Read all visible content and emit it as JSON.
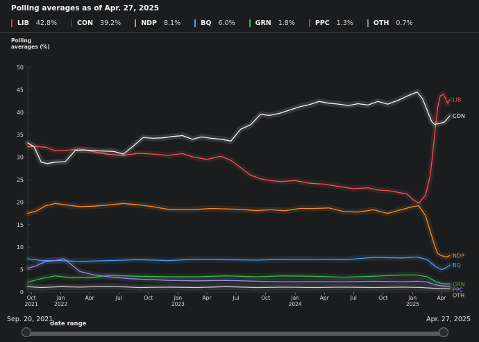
{
  "header": {
    "title": "Polling averages as of Apr. 27, 2025"
  },
  "legend": [
    {
      "name": "LIB",
      "value": "42.8%",
      "color": "#e8343a"
    },
    {
      "name": "CON",
      "value": "39.2%",
      "color": "#1f3f7f"
    },
    {
      "name": "NDP",
      "value": "8.1%",
      "color": "#f58d2e"
    },
    {
      "name": "BQ",
      "value": "6.0%",
      "color": "#4aa3ee"
    },
    {
      "name": "GRN",
      "value": "1.8%",
      "color": "#3dbb4e"
    },
    {
      "name": "PPC",
      "value": "1.3%",
      "color": "#6c4ec2"
    },
    {
      "name": "OTH",
      "value": "0.7%",
      "color": "#8b8c8f"
    }
  ],
  "date_range": {
    "label": "date range",
    "start": "Sep. 20, 2021",
    "end": "Apr. 27, 2025"
  },
  "chart_data": {
    "type": "line",
    "ylabel": "Polling averages (%)",
    "ylim": [
      0,
      50
    ],
    "yticks": [
      0,
      5,
      10,
      15,
      20,
      25,
      30,
      35,
      40,
      45,
      50
    ],
    "xlim": [
      "2021-09-20",
      "2025-04-27"
    ],
    "xticks": [
      {
        "date": "2021-10-01",
        "label": "Oct",
        "year": "2021"
      },
      {
        "date": "2022-01-01",
        "label": "Jan",
        "year": "2022"
      },
      {
        "date": "2022-04-01",
        "label": "Apr",
        "year": ""
      },
      {
        "date": "2022-07-01",
        "label": "Jul",
        "year": ""
      },
      {
        "date": "2022-10-01",
        "label": "Oct",
        "year": ""
      },
      {
        "date": "2023-01-01",
        "label": "Jan",
        "year": "2023"
      },
      {
        "date": "2023-04-01",
        "label": "Apr",
        "year": ""
      },
      {
        "date": "2023-07-01",
        "label": "Jul",
        "year": ""
      },
      {
        "date": "2023-10-01",
        "label": "Oct",
        "year": ""
      },
      {
        "date": "2024-01-01",
        "label": "Jan",
        "year": "2024"
      },
      {
        "date": "2024-04-01",
        "label": "Apr",
        "year": ""
      },
      {
        "date": "2024-07-01",
        "label": "Jul",
        "year": ""
      },
      {
        "date": "2024-10-01",
        "label": "Oct",
        "year": ""
      },
      {
        "date": "2025-01-01",
        "label": "Jan",
        "year": "2025"
      },
      {
        "date": "2025-04-01",
        "label": "Apr",
        "year": ""
      }
    ],
    "series": [
      {
        "name": "LIB",
        "color": "#e8343a",
        "line": "#f0565c",
        "points": [
          [
            "2021-09-20",
            32.3
          ],
          [
            "2021-10-15",
            32.4
          ],
          [
            "2021-11-15",
            32.2
          ],
          [
            "2021-12-15",
            31.4
          ],
          [
            "2022-01-15",
            31.5
          ],
          [
            "2022-03-01",
            31.8
          ],
          [
            "2022-04-15",
            31.2
          ],
          [
            "2022-06-01",
            30.6
          ],
          [
            "2022-07-15",
            30.4
          ],
          [
            "2022-09-01",
            30.9
          ],
          [
            "2022-10-15",
            30.7
          ],
          [
            "2022-12-01",
            30.4
          ],
          [
            "2023-01-15",
            30.8
          ],
          [
            "2023-02-15",
            30.1
          ],
          [
            "2023-04-01",
            29.5
          ],
          [
            "2023-05-15",
            30.2
          ],
          [
            "2023-06-15",
            29.3
          ],
          [
            "2023-07-15",
            27.7
          ],
          [
            "2023-08-15",
            26.0
          ],
          [
            "2023-09-15",
            25.2
          ],
          [
            "2023-10-15",
            24.8
          ],
          [
            "2023-11-15",
            24.6
          ],
          [
            "2024-01-01",
            24.8
          ],
          [
            "2024-02-15",
            24.2
          ],
          [
            "2024-04-01",
            24.0
          ],
          [
            "2024-05-15",
            23.5
          ],
          [
            "2024-07-01",
            23.0
          ],
          [
            "2024-08-15",
            23.2
          ],
          [
            "2024-09-15",
            22.7
          ],
          [
            "2024-10-15",
            22.6
          ],
          [
            "2024-11-15",
            22.2
          ],
          [
            "2024-12-15",
            21.8
          ],
          [
            "2025-01-01",
            20.6
          ],
          [
            "2025-01-20",
            19.8
          ],
          [
            "2025-02-10",
            21.5
          ],
          [
            "2025-02-25",
            26.0
          ],
          [
            "2025-03-05",
            31.0
          ],
          [
            "2025-03-12",
            36.0
          ],
          [
            "2025-03-20",
            41.0
          ],
          [
            "2025-03-28",
            43.6
          ],
          [
            "2025-04-06",
            44.0
          ],
          [
            "2025-04-14",
            43.0
          ],
          [
            "2025-04-20",
            42.0
          ],
          [
            "2025-04-27",
            42.8
          ]
        ]
      },
      {
        "name": "CON",
        "color": "#1f3f7f",
        "line": "#f5f5f5",
        "points": [
          [
            "2021-09-20",
            33.2
          ],
          [
            "2021-10-10",
            32.3
          ],
          [
            "2021-11-01",
            28.9
          ],
          [
            "2021-11-20",
            28.6
          ],
          [
            "2021-12-15",
            28.9
          ],
          [
            "2022-01-15",
            29.0
          ],
          [
            "2022-02-15",
            31.5
          ],
          [
            "2022-03-15",
            31.6
          ],
          [
            "2022-05-01",
            31.4
          ],
          [
            "2022-06-15",
            31.3
          ],
          [
            "2022-07-15",
            30.7
          ],
          [
            "2022-08-15",
            32.5
          ],
          [
            "2022-09-15",
            34.4
          ],
          [
            "2022-10-15",
            34.2
          ],
          [
            "2022-11-15",
            34.3
          ],
          [
            "2022-12-15",
            34.6
          ],
          [
            "2023-01-15",
            34.8
          ],
          [
            "2023-02-15",
            34.0
          ],
          [
            "2023-03-15",
            34.5
          ],
          [
            "2023-04-15",
            34.2
          ],
          [
            "2023-05-15",
            34.0
          ],
          [
            "2023-06-15",
            33.6
          ],
          [
            "2023-07-15",
            36.2
          ],
          [
            "2023-08-15",
            37.2
          ],
          [
            "2023-09-15",
            39.5
          ],
          [
            "2023-10-15",
            39.3
          ],
          [
            "2023-11-15",
            39.8
          ],
          [
            "2023-12-15",
            40.5
          ],
          [
            "2024-01-15",
            41.2
          ],
          [
            "2024-02-15",
            41.7
          ],
          [
            "2024-03-15",
            42.4
          ],
          [
            "2024-04-15",
            42.0
          ],
          [
            "2024-05-15",
            41.8
          ],
          [
            "2024-06-15",
            41.5
          ],
          [
            "2024-07-15",
            41.9
          ],
          [
            "2024-08-15",
            41.6
          ],
          [
            "2024-09-15",
            42.4
          ],
          [
            "2024-10-15",
            41.8
          ],
          [
            "2024-11-15",
            42.6
          ],
          [
            "2024-12-15",
            43.6
          ],
          [
            "2025-01-15",
            44.5
          ],
          [
            "2025-02-01",
            43.0
          ],
          [
            "2025-02-15",
            40.5
          ],
          [
            "2025-03-01",
            38.0
          ],
          [
            "2025-03-10",
            37.3
          ],
          [
            "2025-03-25",
            37.5
          ],
          [
            "2025-04-10",
            37.8
          ],
          [
            "2025-04-27",
            39.2
          ]
        ]
      },
      {
        "name": "NDP",
        "color": "#f58d2e",
        "line": "#f58d2e",
        "points": [
          [
            "2021-09-20",
            17.5
          ],
          [
            "2021-10-15",
            18.0
          ],
          [
            "2021-11-15",
            19.2
          ],
          [
            "2021-12-15",
            19.7
          ],
          [
            "2022-01-15",
            19.4
          ],
          [
            "2022-03-01",
            19.0
          ],
          [
            "2022-04-15",
            19.1
          ],
          [
            "2022-06-01",
            19.4
          ],
          [
            "2022-07-15",
            19.7
          ],
          [
            "2022-09-01",
            19.4
          ],
          [
            "2022-10-15",
            19.0
          ],
          [
            "2022-12-01",
            18.4
          ],
          [
            "2023-01-15",
            18.3
          ],
          [
            "2023-03-01",
            18.4
          ],
          [
            "2023-04-15",
            18.6
          ],
          [
            "2023-06-01",
            18.5
          ],
          [
            "2023-07-15",
            18.4
          ],
          [
            "2023-09-01",
            18.1
          ],
          [
            "2023-10-15",
            18.3
          ],
          [
            "2023-12-01",
            18.1
          ],
          [
            "2024-01-15",
            18.6
          ],
          [
            "2024-03-01",
            18.6
          ],
          [
            "2024-04-15",
            18.7
          ],
          [
            "2024-06-01",
            17.9
          ],
          [
            "2024-07-15",
            17.8
          ],
          [
            "2024-09-01",
            18.3
          ],
          [
            "2024-10-15",
            17.5
          ],
          [
            "2024-12-01",
            18.4
          ],
          [
            "2025-01-01",
            19.0
          ],
          [
            "2025-01-20",
            19.2
          ],
          [
            "2025-02-10",
            17.0
          ],
          [
            "2025-02-25",
            13.5
          ],
          [
            "2025-03-10",
            10.5
          ],
          [
            "2025-03-20",
            8.6
          ],
          [
            "2025-04-01",
            8.1
          ],
          [
            "2025-04-15",
            7.8
          ],
          [
            "2025-04-27",
            8.1
          ]
        ]
      },
      {
        "name": "BQ",
        "color": "#4aa3ee",
        "line": "#4aa3ee",
        "points": [
          [
            "2021-09-20",
            7.4
          ],
          [
            "2021-11-01",
            7.0
          ],
          [
            "2022-01-01",
            7.0
          ],
          [
            "2022-03-01",
            6.8
          ],
          [
            "2022-06-01",
            7.0
          ],
          [
            "2022-09-01",
            7.2
          ],
          [
            "2022-12-01",
            7.0
          ],
          [
            "2023-03-01",
            7.3
          ],
          [
            "2023-06-01",
            7.2
          ],
          [
            "2023-09-01",
            7.1
          ],
          [
            "2023-12-01",
            7.3
          ],
          [
            "2024-03-01",
            7.3
          ],
          [
            "2024-06-01",
            7.2
          ],
          [
            "2024-09-01",
            7.7
          ],
          [
            "2024-12-01",
            7.6
          ],
          [
            "2025-01-15",
            7.8
          ],
          [
            "2025-02-15",
            7.2
          ],
          [
            "2025-03-15",
            5.6
          ],
          [
            "2025-04-01",
            5.0
          ],
          [
            "2025-04-15",
            5.4
          ],
          [
            "2025-04-27",
            6.0
          ]
        ]
      },
      {
        "name": "GRN",
        "color": "#3dbb4e",
        "line": "#3dbb4e",
        "points": [
          [
            "2021-09-20",
            2.2
          ],
          [
            "2021-11-01",
            3.0
          ],
          [
            "2021-12-15",
            3.6
          ],
          [
            "2022-02-01",
            3.2
          ],
          [
            "2022-04-01",
            3.2
          ],
          [
            "2022-06-01",
            3.7
          ],
          [
            "2022-09-01",
            3.5
          ],
          [
            "2022-12-01",
            3.4
          ],
          [
            "2023-03-01",
            3.4
          ],
          [
            "2023-06-01",
            3.6
          ],
          [
            "2023-09-01",
            3.4
          ],
          [
            "2023-12-01",
            3.6
          ],
          [
            "2024-03-01",
            3.5
          ],
          [
            "2024-06-01",
            3.3
          ],
          [
            "2024-09-01",
            3.5
          ],
          [
            "2024-12-01",
            3.8
          ],
          [
            "2025-01-15",
            3.8
          ],
          [
            "2025-02-15",
            3.4
          ],
          [
            "2025-03-15",
            2.3
          ],
          [
            "2025-04-01",
            1.9
          ],
          [
            "2025-04-27",
            1.8
          ]
        ]
      },
      {
        "name": "PPC",
        "color": "#6c4ec2",
        "line": "#9b8be8",
        "points": [
          [
            "2021-09-20",
            5.3
          ],
          [
            "2021-10-15",
            5.8
          ],
          [
            "2021-11-15",
            6.8
          ],
          [
            "2021-12-15",
            7.0
          ],
          [
            "2022-01-10",
            7.4
          ],
          [
            "2022-02-01",
            6.2
          ],
          [
            "2022-03-01",
            4.6
          ],
          [
            "2022-04-15",
            3.8
          ],
          [
            "2022-06-01",
            3.4
          ],
          [
            "2022-08-01",
            3.0
          ],
          [
            "2022-10-01",
            2.8
          ],
          [
            "2022-12-01",
            2.6
          ],
          [
            "2023-03-01",
            2.5
          ],
          [
            "2023-06-01",
            2.6
          ],
          [
            "2023-09-01",
            2.4
          ],
          [
            "2023-12-01",
            2.3
          ],
          [
            "2024-03-01",
            2.3
          ],
          [
            "2024-06-01",
            2.3
          ],
          [
            "2024-09-01",
            2.4
          ],
          [
            "2024-12-01",
            2.3
          ],
          [
            "2025-01-15",
            2.4
          ],
          [
            "2025-02-15",
            2.2
          ],
          [
            "2025-03-15",
            1.6
          ],
          [
            "2025-04-01",
            1.4
          ],
          [
            "2025-04-27",
            1.3
          ]
        ]
      },
      {
        "name": "OTH",
        "color": "#8b8c8f",
        "line": "#cfcfcf",
        "points": [
          [
            "2021-09-20",
            1.2
          ],
          [
            "2021-11-01",
            1.0
          ],
          [
            "2022-01-01",
            1.2
          ],
          [
            "2022-03-01",
            1.1
          ],
          [
            "2022-06-01",
            1.3
          ],
          [
            "2022-09-01",
            1.0
          ],
          [
            "2022-12-01",
            1.1
          ],
          [
            "2023-03-01",
            1.0
          ],
          [
            "2023-06-01",
            1.2
          ],
          [
            "2023-09-01",
            1.0
          ],
          [
            "2023-12-01",
            1.1
          ],
          [
            "2024-03-01",
            1.0
          ],
          [
            "2024-06-01",
            1.1
          ],
          [
            "2024-09-01",
            1.0
          ],
          [
            "2024-12-01",
            1.1
          ],
          [
            "2025-02-01",
            1.0
          ],
          [
            "2025-03-15",
            0.8
          ],
          [
            "2025-04-27",
            0.7
          ]
        ]
      }
    ]
  }
}
